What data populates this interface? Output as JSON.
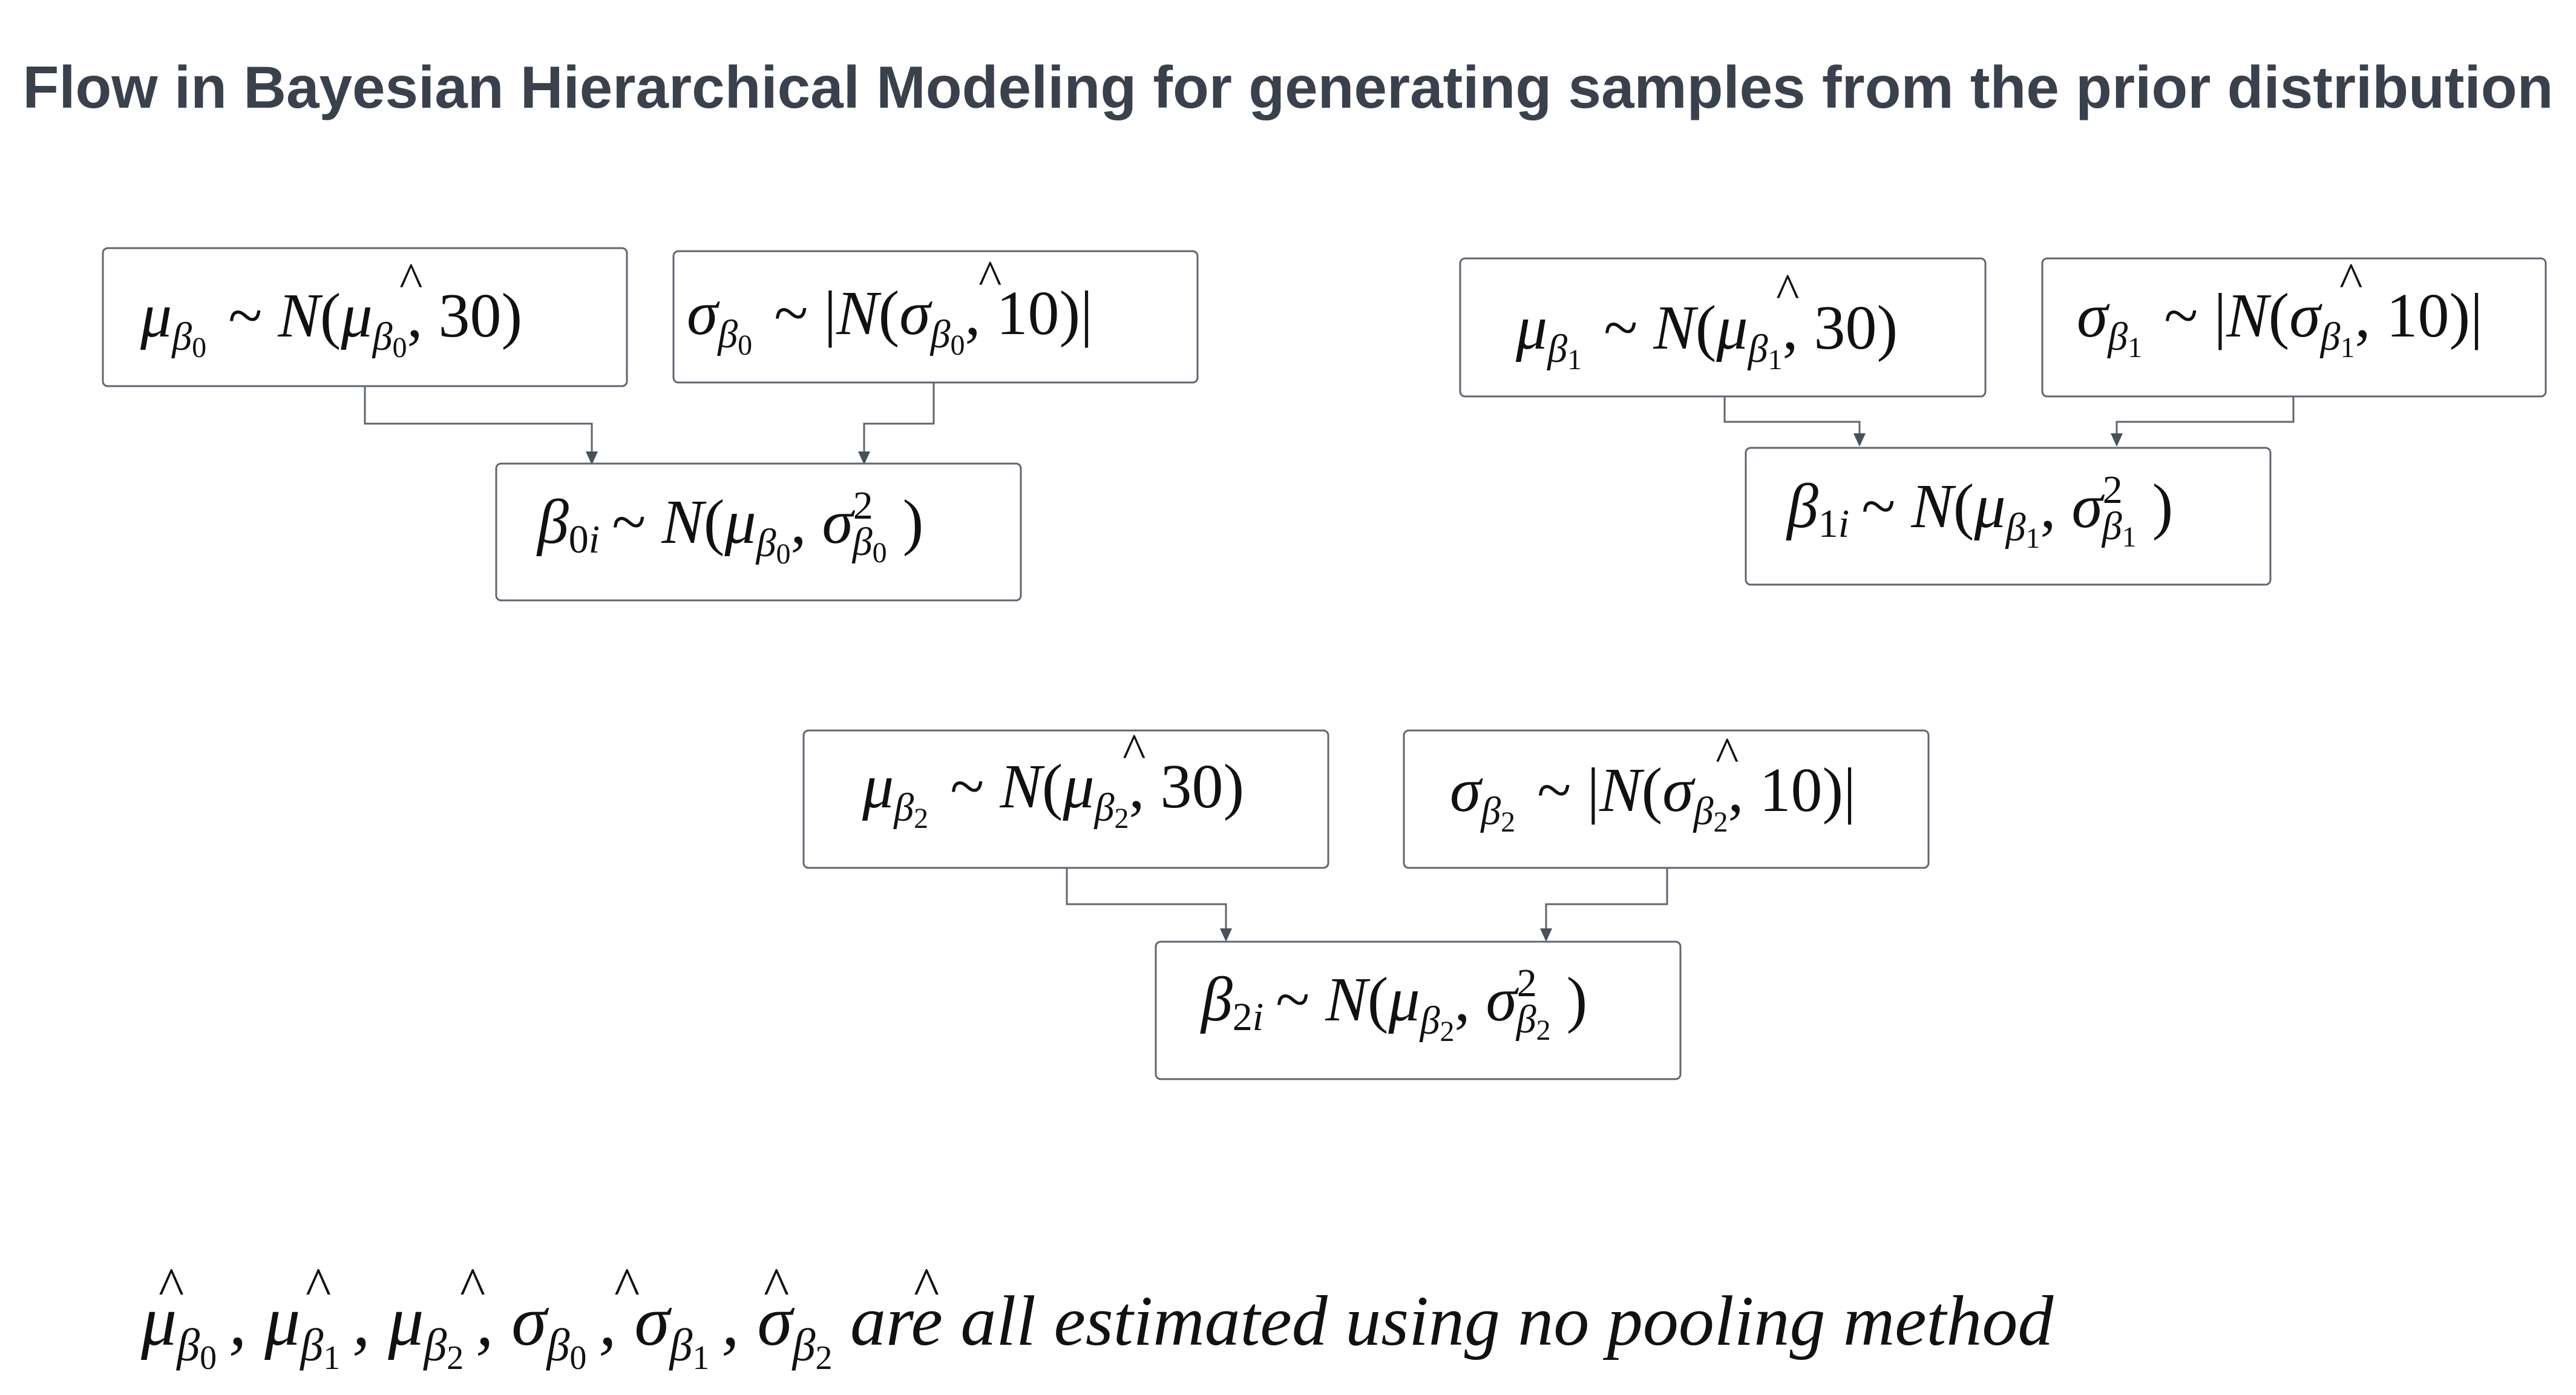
{
  "title": "Flow in Bayesian Hierarchical Modeling for generating samples from the prior distribution",
  "nodes": {
    "mu_beta0_prior": "μβ₀ ~ N(μ̂β₀, 30)",
    "sigma_beta0_prior": "σβ₀ ~ |N(σ̂β₀, 10)|",
    "beta0i": "β0i ~ N(μβ₀, σ²β₀)",
    "mu_beta1_prior": "μβ₁ ~ N(μ̂β₁, 30)",
    "sigma_beta1_prior": "σβ₁ ~ |N(σ̂β₁, 10)|",
    "beta1i": "β1i ~ N(μβ₁, σ²β₁)",
    "mu_beta2_prior": "μβ₂ ~ N(μ̂β₂, 30)",
    "sigma_beta2_prior": "σβ₂ ~ |N(σ̂β₂, 10)|",
    "beta2i": "β2i ~ N(μβ₂, σ²β₂)"
  },
  "edges": [
    [
      "mu_beta0_prior",
      "beta0i"
    ],
    [
      "sigma_beta0_prior",
      "beta0i"
    ],
    [
      "mu_beta1_prior",
      "beta1i"
    ],
    [
      "sigma_beta1_prior",
      "beta1i"
    ],
    [
      "mu_beta2_prior",
      "beta2i"
    ],
    [
      "sigma_beta2_prior",
      "beta2i"
    ]
  ],
  "footnote": "μ̂β₀ , μ̂β₁ , μ̂β₂ , σ̂β₀ , σ̂β₁ , σ̂β₂ are all estimated using no pooling method"
}
